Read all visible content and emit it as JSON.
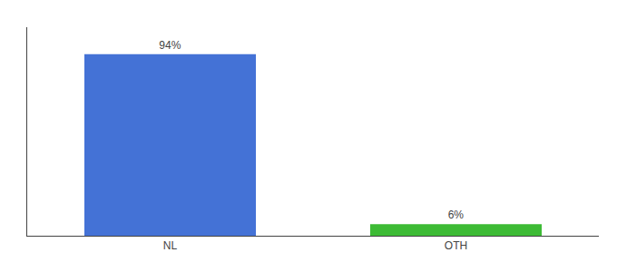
{
  "chart_data": {
    "type": "bar",
    "categories": [
      "NL",
      "OTH"
    ],
    "values": [
      94,
      6
    ],
    "value_labels": [
      "94%",
      "6%"
    ],
    "colors": [
      "#4472d6",
      "#3dbb35"
    ],
    "ylim": [
      0,
      108
    ],
    "data_labels": true,
    "tick_labels": "x",
    "grid": false
  }
}
